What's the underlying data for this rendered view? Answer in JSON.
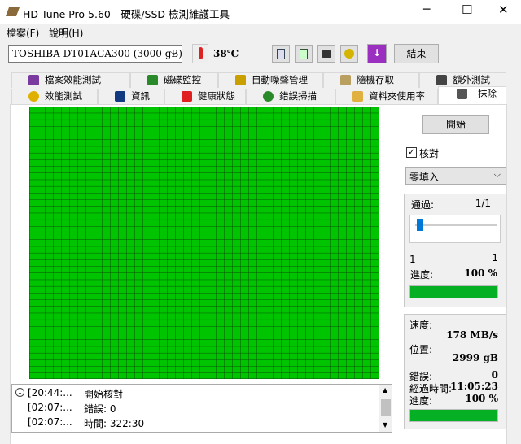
{
  "window": {
    "title": "HD Tune Pro 5.60 - 硬碟/SSD 檢測維護工具"
  },
  "menu": [
    "檔案(F)",
    "說明(H)"
  ],
  "toolbar": {
    "drive": "TOSHIBA DT01ACA300 (3000 gB)",
    "temperature": "38℃",
    "exit": "結束"
  },
  "tabs": {
    "row1": [
      "檔案效能測試",
      "磁碟監控",
      "自動噪聲管理",
      "隨機存取",
      "額外測試"
    ],
    "row2": [
      "效能測試",
      "資訊",
      "健康狀態",
      "錯誤掃描",
      "資料夾使用率",
      "抹除"
    ]
  },
  "log": [
    {
      "time": "[20:44:...",
      "message": "開始核對"
    },
    {
      "time": "[02:07:...",
      "message": "錯誤: 0"
    },
    {
      "time": "[02:07:...",
      "message": "時間: 322:30"
    }
  ],
  "side": {
    "start": "開始",
    "verify": "核對",
    "fill": "零填入",
    "pass_label": "通過:",
    "pass": "1/1",
    "slider_min": "1",
    "slider_max": "1",
    "progress_label": "進度:",
    "progress": "100 %"
  },
  "stats": [
    {
      "label": "速度:",
      "value": "178 MB/s"
    },
    {
      "label": "位置:",
      "value": "2999 gB"
    },
    {
      "label": "錯誤:",
      "value": "0"
    },
    {
      "label": "經過時間:",
      "value": "11:05:23"
    },
    {
      "label": "進度:",
      "value": "100 %"
    }
  ]
}
